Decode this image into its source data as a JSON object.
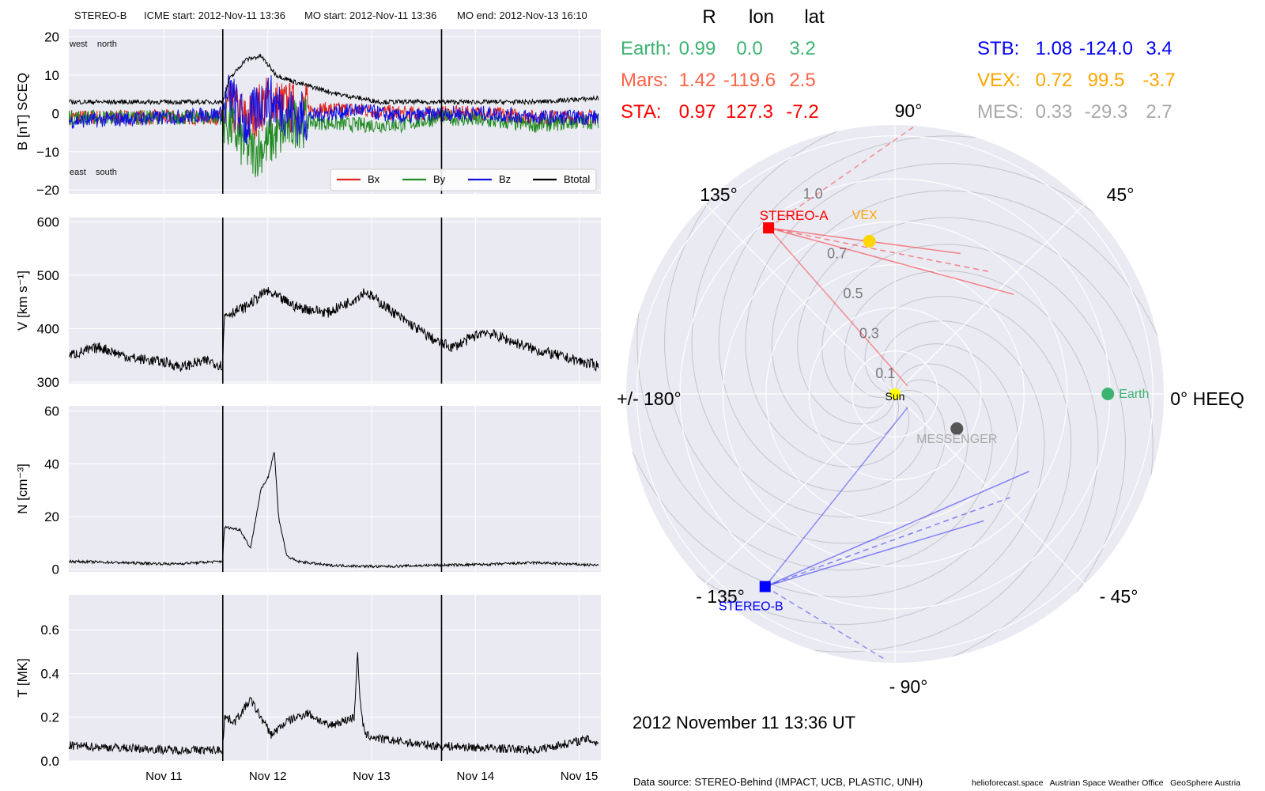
{
  "header": {
    "spacecraft": "STEREO-B",
    "icme_start": "ICME start: 2012-Nov-11 13:36",
    "mo_start": "MO start: 2012-Nov-11 13:36",
    "mo_end": "MO end: 2012-Nov-13 16:10"
  },
  "footer": {
    "datetime": "2012 November 11  13:36 UT",
    "source": "Data source: STEREO-Behind (IMPACT, UCB, PLASTIC, UNH)",
    "credits": "helioforecast.space   Austrian Space Weather Office   GeoSphere Austria"
  },
  "colors": {
    "panel_bg": "#eaeaf2",
    "bx": "#e0201b",
    "by": "#1f8a1f",
    "bz": "#1010e0",
    "btotal": "#000000",
    "earth": "#3cb371",
    "mars": "#ff6347",
    "sta": "#ff0000",
    "stb": "#0000ff",
    "vex": "#ffa500",
    "mes": "#a9a9a9",
    "sun": "#ffff00"
  },
  "table": {
    "columns": [
      "R",
      "lon",
      "lat"
    ],
    "rows_left": [
      {
        "label": "Earth:",
        "R": "0.99",
        "lon": "0.0",
        "lat": "3.2",
        "color": "#3cb371"
      },
      {
        "label": "Mars:",
        "R": "1.42",
        "lon": "-119.6",
        "lat": "2.5",
        "color": "#ff6347"
      },
      {
        "label": "STA:",
        "R": "0.97",
        "lon": "127.3",
        "lat": "-7.2",
        "color": "#ff0000"
      }
    ],
    "rows_right": [
      {
        "label": "STB:",
        "R": "1.08",
        "lon": "-124.0",
        "lat": "3.4",
        "color": "#0000ff"
      },
      {
        "label": "VEX:",
        "R": "0.72",
        "lon": "99.5",
        "lat": "-3.7",
        "color": "#ffa500"
      },
      {
        "label": "MES:",
        "R": "0.33",
        "lon": "-29.3",
        "lat": "2.7",
        "color": "#a9a9a9"
      }
    ]
  },
  "chart_data": [
    {
      "type": "line",
      "ylabel": "B [nT] SCEQ",
      "ylim": [
        -21,
        22
      ],
      "yticks": [
        -20,
        -10,
        0,
        10,
        20
      ],
      "yticklabels": [
        "−20",
        "−10",
        "0",
        "10",
        "20"
      ],
      "annotations": [
        "west    north",
        "east    south"
      ],
      "legend": {
        "placement": "lower-right",
        "entries": [
          "Bx",
          "By",
          "Bz",
          "Btotal"
        ]
      },
      "x_range_days": [
        "2012-11-10 02:00",
        "2012-11-15 05:00"
      ],
      "event_lines": [
        "2012-11-11 13:36",
        "2012-11-13 16:10"
      ],
      "series": [
        {
          "name": "Bx",
          "color": "#e0201b",
          "x_days": [
            0,
            1,
            1.48,
            1.55,
            1.7,
            1.9,
            2.2,
            2.8,
            3.2,
            3.6,
            4,
            4.5,
            5.1
          ],
          "y": [
            -1,
            -1,
            -1,
            2,
            -2,
            3,
            1,
            1,
            0,
            0,
            0,
            -1,
            -1
          ],
          "noise": 2
        },
        {
          "name": "By",
          "color": "#1f8a1f",
          "x_days": [
            0,
            1,
            1.48,
            1.55,
            1.7,
            1.8,
            1.95,
            2.2,
            2.8,
            3.2,
            3.6,
            4,
            4.5,
            5.1
          ],
          "y": [
            -1,
            -1,
            -1,
            -3,
            -9,
            -10,
            -7,
            -2,
            -3,
            -3,
            -1,
            -2,
            -3,
            -2
          ],
          "noise": 2
        },
        {
          "name": "Bz",
          "color": "#1010e0",
          "x_days": [
            0,
            1,
            1.48,
            1.55,
            1.7,
            1.9,
            2.2,
            2.8,
            3.2,
            3.6,
            4,
            4.5,
            5.1
          ],
          "y": [
            -2,
            -1,
            0,
            5,
            -3,
            4,
            -1,
            1,
            -1,
            0,
            0,
            -1,
            -1
          ],
          "noise": 2
        },
        {
          "name": "Btotal",
          "color": "#000000",
          "x_days": [
            0,
            1,
            1.48,
            1.55,
            1.7,
            1.85,
            2,
            2.2,
            2.6,
            3,
            3.5,
            4,
            4.5,
            5.1
          ],
          "y": [
            3,
            3,
            3,
            9,
            14,
            15,
            10,
            8,
            5,
            3,
            3,
            3,
            3,
            4
          ],
          "noise": 0.6
        }
      ]
    },
    {
      "type": "line",
      "ylabel": "V [km s⁻¹]",
      "ylim": [
        297,
        608
      ],
      "yticks": [
        300,
        400,
        500,
        600
      ],
      "yticklabels": [
        "300",
        "400",
        "500",
        "600"
      ],
      "event_lines": [
        "2012-11-11 13:36",
        "2012-11-13 16:10"
      ],
      "series": [
        {
          "name": "V",
          "color": "#000000",
          "x_days": [
            0,
            0.3,
            0.6,
            0.9,
            1.1,
            1.2,
            1.35,
            1.48,
            1.5,
            1.7,
            1.9,
            2.1,
            2.2,
            2.5,
            2.75,
            2.85,
            3.2,
            3.55,
            3.7,
            4,
            4.5,
            5.1
          ],
          "y": [
            350,
            365,
            345,
            338,
            328,
            335,
            340,
            330,
            425,
            440,
            470,
            450,
            440,
            430,
            455,
            470,
            420,
            375,
            365,
            395,
            360,
            330
          ],
          "noise": 10
        }
      ]
    },
    {
      "type": "line",
      "ylabel": "N [cm⁻³]",
      "ylim": [
        -1,
        62
      ],
      "yticks": [
        0,
        20,
        40,
        60
      ],
      "yticklabels": [
        "0",
        "20",
        "40",
        "60"
      ],
      "event_lines": [
        "2012-11-11 13:36",
        "2012-11-13 16:10"
      ],
      "series": [
        {
          "name": "N",
          "color": "#000000",
          "x_days": [
            0,
            1,
            1.48,
            1.5,
            1.65,
            1.75,
            1.85,
            1.92,
            1.98,
            2.02,
            2.1,
            2.2,
            2.5,
            3,
            3.5,
            4,
            4.5,
            5.1
          ],
          "y": [
            3,
            2,
            3,
            16,
            15,
            8,
            30,
            35,
            45,
            20,
            5,
            3,
            1.5,
            1,
            1.5,
            1.8,
            2.5,
            1.5
          ],
          "noise": 0.5
        }
      ]
    },
    {
      "type": "line",
      "ylabel": "T [MK]",
      "xlabel": "",
      "ylim": [
        0,
        0.76
      ],
      "yticks": [
        0.0,
        0.2,
        0.4,
        0.6
      ],
      "yticklabels": [
        "0.0",
        "0.2",
        "0.4",
        "0.6"
      ],
      "xticklabels": [
        "Nov 11",
        "Nov 12",
        "Nov 13",
        "Nov 14",
        "Nov 15"
      ],
      "event_lines": [
        "2012-11-11 13:36",
        "2012-11-13 16:10"
      ],
      "series": [
        {
          "name": "T",
          "color": "#000000",
          "x_days": [
            0,
            0.5,
            1,
            1.48,
            1.5,
            1.6,
            1.75,
            1.85,
            1.95,
            2.1,
            2.3,
            2.5,
            2.75,
            2.78,
            2.81,
            2.85,
            3,
            3.5,
            4,
            4.5,
            5,
            5.1
          ],
          "y": [
            0.07,
            0.06,
            0.05,
            0.05,
            0.2,
            0.18,
            0.28,
            0.2,
            0.12,
            0.18,
            0.22,
            0.16,
            0.2,
            0.5,
            0.25,
            0.12,
            0.1,
            0.07,
            0.06,
            0.05,
            0.1,
            0.08
          ],
          "noise": 0.02
        }
      ]
    },
    {
      "type": "scatter",
      "subtype": "polar",
      "title": "",
      "angle_labels": [
        "0° HEEQ",
        "45°",
        "90°",
        "135°",
        "+/- 180°",
        "- 135°",
        "- 90°",
        "- 45°"
      ],
      "radial_ticks": [
        0.1,
        0.3,
        0.5,
        0.7,
        1.0
      ],
      "radial_labels": [
        "0.1",
        "0.3",
        "0.5",
        "0.7",
        "1.0"
      ],
      "rlim": [
        0,
        1.25
      ],
      "grid": true,
      "points": [
        {
          "name": "Sun",
          "r": 0,
          "lon": 0,
          "color": "#ffff00",
          "shape": "circle"
        },
        {
          "name": "Earth",
          "r": 0.99,
          "lon": 0.0,
          "color": "#3cb371",
          "shape": "circle"
        },
        {
          "name": "VEX",
          "r": 0.72,
          "lon": 99.5,
          "color": "#ffd700",
          "shape": "circle"
        },
        {
          "name": "MESSENGER",
          "r": 0.33,
          "lon": -29.3,
          "color": "#555555",
          "shape": "circle"
        },
        {
          "name": "STEREO-A",
          "r": 0.97,
          "lon": 127.3,
          "color": "#ff0000",
          "shape": "square"
        },
        {
          "name": "STEREO-B",
          "r": 1.08,
          "lon": -124.0,
          "color": "#0000ff",
          "shape": "square"
        }
      ]
    }
  ]
}
